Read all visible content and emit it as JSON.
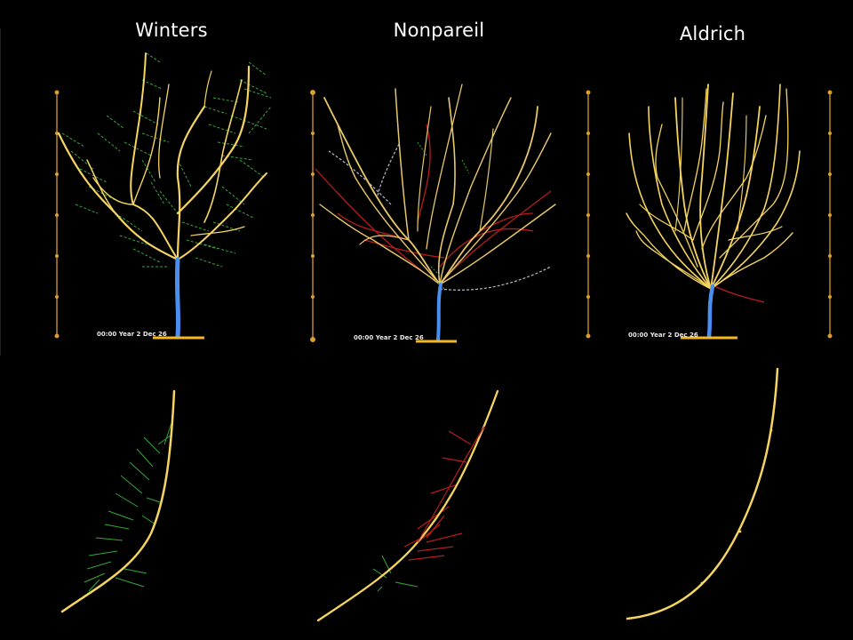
{
  "columns": [
    {
      "id": "winters",
      "title": "Winters",
      "timestamp": "00:00 Year 2 Dec 26"
    },
    {
      "id": "nonpareil",
      "title": "Nonpareil",
      "timestamp": "00:00 Year 2 Dec 26"
    },
    {
      "id": "aldrich",
      "title": "Aldrich",
      "timestamp": "00:00 Year 2 Dec 26"
    }
  ],
  "colors": {
    "background": "#000000",
    "trunk": "#4a8ff0",
    "branch": "#f5d560",
    "base": "#f5b81e",
    "leaf": "#35a838",
    "red_shoot": "#b81c1c",
    "gray_shoot": "#b8b8c8",
    "scale": "#e0a030"
  }
}
